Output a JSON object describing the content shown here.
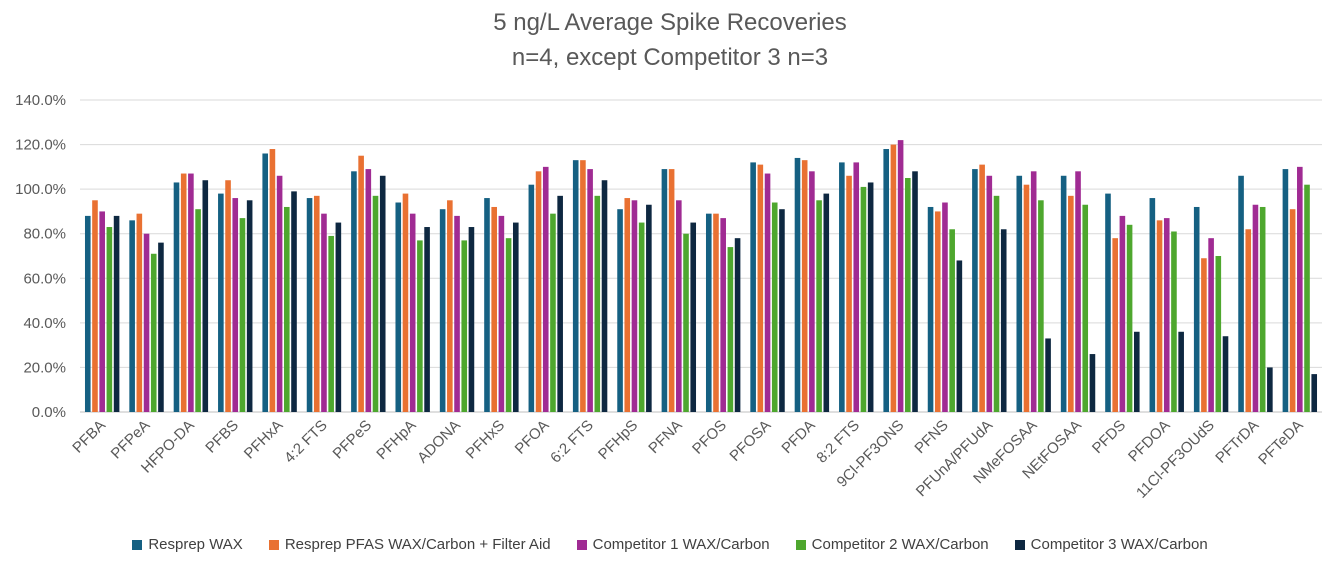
{
  "chart_data": {
    "type": "bar",
    "title": "5 ng/L Average Spike Recoveries",
    "subtitle": "n=4, except Competitor 3 n=3",
    "xlabel": "",
    "ylabel": "",
    "ylim": [
      0,
      140
    ],
    "yticks": [
      "0.0%",
      "20.0%",
      "40.0%",
      "60.0%",
      "80.0%",
      "100.0%",
      "120.0%",
      "140.0%"
    ],
    "grid": true,
    "legend_position": "bottom",
    "categories": [
      "PFBA",
      "PFPeA",
      "HFPO-DA",
      "PFBS",
      "PFHxA",
      "4:2 FTS",
      "PFPeS",
      "PFHpA",
      "ADONA",
      "PFHxS",
      "PFOA",
      "6:2 FTS",
      "PFHpS",
      "PFNA",
      "PFOS",
      "PFOSA",
      "PFDA",
      "8:2 FTS",
      "9Cl-PF3ONS",
      "PFNS",
      "PFUnA/PFUdA",
      "NMeFOSAA",
      "NEtFOSAA",
      "PFDS",
      "PFDOA",
      "11Cl-PF3OUdS",
      "PFTrDA",
      "PFTeDA"
    ],
    "series": [
      {
        "name": "Resprep WAX",
        "color": "#156082",
        "values": [
          88,
          86,
          103,
          98,
          116,
          96,
          108,
          94,
          91,
          96,
          102,
          113,
          91,
          109,
          89,
          112,
          114,
          112,
          118,
          92,
          109,
          106,
          106,
          98,
          96,
          92,
          106,
          109
        ]
      },
      {
        "name": "Resprep PFAS WAX/Carbon + Filter Aid",
        "color": "#E97132",
        "values": [
          95,
          89,
          107,
          104,
          118,
          97,
          115,
          98,
          95,
          92,
          108,
          113,
          96,
          109,
          89,
          111,
          113,
          106,
          120,
          90,
          111,
          102,
          97,
          78,
          86,
          69,
          82,
          91
        ]
      },
      {
        "name": "Competitor 1 WAX/Carbon",
        "color": "#A02B93",
        "values": [
          90,
          80,
          107,
          96,
          106,
          89,
          109,
          89,
          88,
          88,
          110,
          109,
          95,
          95,
          87,
          107,
          108,
          112,
          122,
          94,
          106,
          108,
          108,
          88,
          87,
          78,
          93,
          110
        ]
      },
      {
        "name": "Competitor 2 WAX/Carbon",
        "color": "#4EA72E",
        "values": [
          83,
          71,
          91,
          87,
          92,
          79,
          97,
          77,
          77,
          78,
          89,
          97,
          85,
          80,
          74,
          94,
          95,
          101,
          105,
          82,
          97,
          95,
          93,
          84,
          81,
          70,
          92,
          102
        ]
      },
      {
        "name": "Competitor 3 WAX/Carbon",
        "color": "#0E2841",
        "values": [
          88,
          76,
          104,
          95,
          99,
          85,
          106,
          83,
          83,
          85,
          97,
          104,
          93,
          85,
          78,
          91,
          98,
          103,
          108,
          68,
          82,
          33,
          26,
          36,
          36,
          34,
          20,
          17
        ]
      }
    ]
  }
}
